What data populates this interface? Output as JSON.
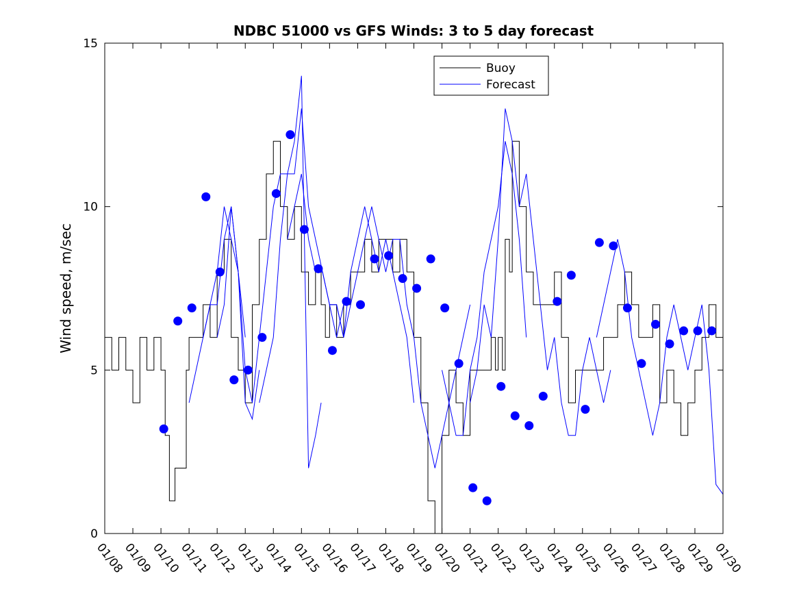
{
  "chart_data": {
    "type": "line",
    "title": "NDBC 51000 vs GFS Winds: 3 to 5 day forecast",
    "xlabel": "",
    "ylabel": "Wind speed, m/sec",
    "xlim": [
      "01/08",
      "01/30"
    ],
    "ylim": [
      0,
      15
    ],
    "x_ticks": [
      "01/08",
      "01/09",
      "01/10",
      "01/11",
      "01/12",
      "01/13",
      "01/14",
      "01/15",
      "01/16",
      "01/17",
      "01/18",
      "01/19",
      "01/20",
      "01/21",
      "01/22",
      "01/23",
      "01/24",
      "01/25",
      "01/26",
      "01/27",
      "01/28",
      "01/29",
      "01/30"
    ],
    "y_ticks": [
      0,
      5,
      10,
      15
    ],
    "grid": false,
    "legend": {
      "placement": "top-center",
      "entries": [
        "Buoy",
        "Forecast"
      ]
    },
    "colors": {
      "buoy": "#000000",
      "forecast": "#0000ff"
    },
    "series": [
      {
        "name": "Buoy",
        "style": "step",
        "x_days": [
          0.0,
          0.25,
          0.5,
          0.75,
          1.0,
          1.25,
          1.5,
          1.75,
          2.0,
          2.15,
          2.3,
          2.5,
          2.7,
          2.9,
          3.0,
          3.25,
          3.5,
          3.75,
          4.0,
          4.25,
          4.5,
          4.75,
          5.0,
          5.25,
          5.5,
          5.75,
          6.0,
          6.25,
          6.5,
          6.75,
          7.0,
          7.25,
          7.5,
          7.7,
          7.85,
          8.0,
          8.25,
          8.5,
          8.75,
          9.0,
          9.25,
          9.5,
          9.75,
          10.0,
          10.25,
          10.5,
          10.75,
          11.0,
          11.25,
          11.5,
          11.75,
          12.0,
          12.25,
          12.5,
          12.75,
          13.0,
          13.25,
          13.5,
          13.75,
          13.9,
          14.0,
          14.15,
          14.25,
          14.4,
          14.5,
          14.75,
          15.0,
          15.25,
          15.5,
          15.75,
          16.0,
          16.25,
          16.5,
          16.75,
          17.0,
          17.25,
          17.5,
          17.75,
          18.0,
          18.25,
          18.5,
          18.75,
          19.0,
          19.25,
          19.5,
          19.75,
          20.0,
          20.25,
          20.5,
          20.75,
          21.0,
          21.25,
          21.5,
          21.75,
          22.0
        ],
        "values": [
          6,
          5,
          6,
          5,
          4,
          6,
          5,
          6,
          5,
          3,
          1,
          2,
          2,
          5,
          6,
          6,
          7,
          6,
          8,
          9,
          6,
          5,
          4,
          7,
          9,
          11,
          12,
          10,
          9,
          10,
          8,
          7,
          8,
          7,
          6,
          7,
          6,
          7,
          8,
          8,
          9,
          8,
          9,
          9,
          8,
          9,
          8,
          6,
          4,
          1,
          0,
          3,
          5,
          4,
          3,
          5,
          5,
          5,
          6,
          5,
          6,
          5,
          9,
          8,
          12,
          10,
          8,
          7,
          7,
          7,
          8,
          6,
          4,
          5,
          5,
          5,
          5,
          6,
          6,
          7,
          8,
          7,
          6,
          6,
          7,
          4,
          5,
          4,
          3,
          4,
          5,
          6,
          7,
          6,
          6
        ]
      },
      {
        "name": "Forecast",
        "style": "line",
        "runs": [
          {
            "x_days": [
              3.0,
              3.25,
              3.5,
              3.75,
              4.0,
              4.25,
              4.5,
              4.75,
              5.0
            ],
            "values": [
              4,
              5,
              6,
              7,
              8,
              10,
              9,
              8,
              6
            ]
          },
          {
            "x_days": [
              3.5,
              3.75,
              4.0,
              4.25,
              4.5,
              4.75,
              5.0,
              5.25,
              5.5
            ],
            "values": [
              6,
              7,
              7,
              9,
              10,
              8,
              4,
              3.5,
              5
            ]
          },
          {
            "x_days": [
              4.0,
              4.25,
              4.5,
              4.75,
              5.0,
              5.25,
              5.5,
              5.75,
              6.0,
              6.25,
              6.5,
              6.75,
              7.0,
              7.25,
              7.5,
              7.7
            ],
            "values": [
              6,
              7,
              10,
              8,
              5,
              4,
              6,
              8,
              10,
              11,
              11,
              12,
              14,
              2,
              3,
              4
            ]
          },
          {
            "x_days": [
              5.5,
              5.75,
              6.0,
              6.25,
              6.5,
              6.75,
              7.0,
              7.25,
              7.5,
              7.75,
              8.0,
              8.25,
              8.5
            ],
            "values": [
              4,
              5,
              6,
              9,
              11,
              11,
              13,
              10,
              9,
              8,
              7,
              6,
              7
            ]
          },
          {
            "x_days": [
              6.5,
              6.75,
              7.0,
              7.25,
              7.5,
              7.75,
              8.0,
              8.25,
              8.5,
              8.75,
              9.0,
              9.25,
              9.5,
              9.75,
              10.0
            ],
            "values": [
              9,
              10,
              11,
              9,
              8,
              8,
              7,
              7,
              6,
              7,
              8,
              9,
              10,
              9,
              8
            ]
          },
          {
            "x_days": [
              8.0,
              8.25,
              8.5,
              8.75,
              9.0,
              9.25,
              9.5,
              9.75,
              10.0,
              10.25,
              10.5,
              10.75,
              11.0
            ],
            "values": [
              7,
              7,
              6,
              8,
              9,
              10,
              9,
              8,
              9,
              8,
              7,
              6,
              4
            ]
          },
          {
            "x_days": [
              10.0,
              10.25,
              10.5,
              10.75,
              11.0,
              11.25,
              11.5,
              11.75,
              12.0,
              12.25,
              12.5,
              12.75,
              13.0
            ],
            "values": [
              8,
              9,
              9,
              7,
              6,
              4,
              3,
              2,
              3,
              4,
              5,
              6,
              7
            ]
          },
          {
            "x_days": [
              12.0,
              12.25,
              12.5,
              12.75,
              13.0,
              13.25,
              13.5,
              13.75,
              14.0,
              14.25,
              14.5,
              14.75,
              15.0
            ],
            "values": [
              5,
              4,
              3,
              3,
              5,
              6,
              8,
              9,
              10,
              12,
              11,
              9,
              6
            ]
          },
          {
            "x_days": [
              13.0,
              13.25,
              13.5,
              13.75,
              14.0,
              14.25,
              14.5,
              14.75,
              15.0,
              15.25,
              15.5,
              15.75,
              16.0,
              16.25,
              16.5,
              16.75,
              17.0,
              17.25,
              17.5,
              17.75,
              18.0
            ],
            "values": [
              4,
              5,
              7,
              6,
              9,
              13,
              12,
              10,
              11,
              9,
              7,
              5,
              6,
              4,
              3,
              3,
              5,
              6,
              5,
              4,
              5
            ]
          },
          {
            "x_days": [
              17.5,
              17.75,
              18.0,
              18.25,
              18.5,
              18.75,
              19.0,
              19.25,
              19.5,
              19.75,
              20.0,
              20.25,
              20.5,
              20.75,
              21.0,
              21.25,
              21.5,
              21.75,
              22.0
            ],
            "values": [
              6,
              7,
              8,
              9,
              8,
              6,
              5,
              4,
              3,
              4,
              6,
              7,
              6,
              5,
              6,
              7,
              5,
              1.5,
              1.2
            ]
          }
        ]
      },
      {
        "name": "Forecast points",
        "style": "markers",
        "x_days": [
          2.1,
          2.6,
          3.1,
          3.6,
          4.1,
          4.6,
          5.1,
          5.6,
          6.1,
          6.6,
          7.1,
          7.6,
          8.1,
          8.6,
          9.1,
          9.6,
          10.1,
          10.6,
          11.1,
          11.6,
          12.1,
          12.6,
          13.1,
          13.6,
          14.1,
          14.6,
          15.1,
          15.6,
          16.1,
          16.6,
          17.1,
          17.6,
          18.1,
          18.6,
          19.1,
          19.6,
          20.1,
          20.6,
          21.1,
          21.6
        ],
        "values": [
          3.2,
          6.5,
          6.9,
          10.3,
          8.0,
          4.7,
          5.0,
          6.0,
          10.4,
          12.2,
          9.3,
          8.1,
          5.6,
          7.1,
          7.0,
          8.4,
          8.5,
          7.8,
          7.5,
          8.4,
          6.9,
          5.2,
          1.4,
          1.0,
          4.5,
          3.6,
          3.3,
          4.2,
          7.1,
          7.9,
          3.8,
          8.9,
          8.8,
          6.9,
          5.2,
          6.4,
          5.8,
          6.2,
          6.2,
          6.2
        ]
      }
    ]
  }
}
